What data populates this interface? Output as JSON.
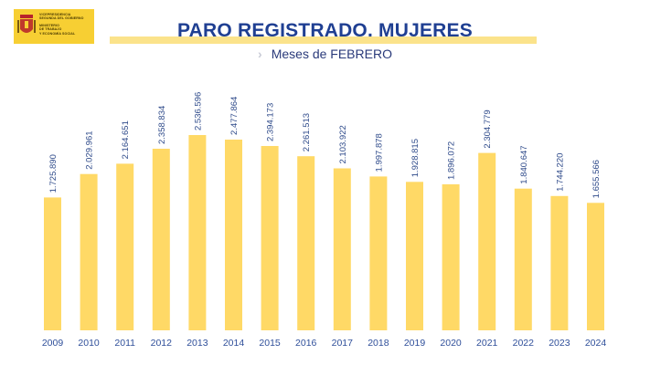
{
  "header": {
    "logo_lines": [
      "VICEPRESIDENCIA",
      "SEGUNDA DEL GOBIERNO",
      "MINISTERIO",
      "DE TRABAJO",
      "Y ECONOMÍA SOCIAL"
    ],
    "title": "PARO REGISTRADO. MUJERES",
    "subtitle": "Meses de FEBRERO",
    "colors": {
      "title": "#1f3f92",
      "bar": "#ffd966",
      "band": "#fbe38b",
      "logo_bg": "#f7cf33"
    }
  },
  "chart_data": {
    "type": "bar",
    "title": "PARO REGISTRADO. MUJERES",
    "subtitle": "Meses de FEBRERO",
    "categories": [
      "2009",
      "2010",
      "2011",
      "2012",
      "2013",
      "2014",
      "2015",
      "2016",
      "2017",
      "2018",
      "2019",
      "2020",
      "2021",
      "2022",
      "2023",
      "2024"
    ],
    "values": [
      1725890,
      2029961,
      2164651,
      2358834,
      2536596,
      2477864,
      2394173,
      2261513,
      2103922,
      1997878,
      1928815,
      1896072,
      2304779,
      1840647,
      1744220,
      1655566
    ],
    "labels": [
      "1.725.890",
      "2.029.961",
      "2.164.651",
      "2.358.834",
      "2.536.596",
      "2.477.864",
      "2.394.173",
      "2.261.513",
      "2.103.922",
      "1.997.878",
      "1.928.815",
      "1.896.072",
      "2.304.779",
      "1.840.647",
      "1.744.220",
      "1.655.566"
    ],
    "ylim": [
      0,
      2750000
    ],
    "grid": false,
    "xlabel": "",
    "ylabel": ""
  }
}
